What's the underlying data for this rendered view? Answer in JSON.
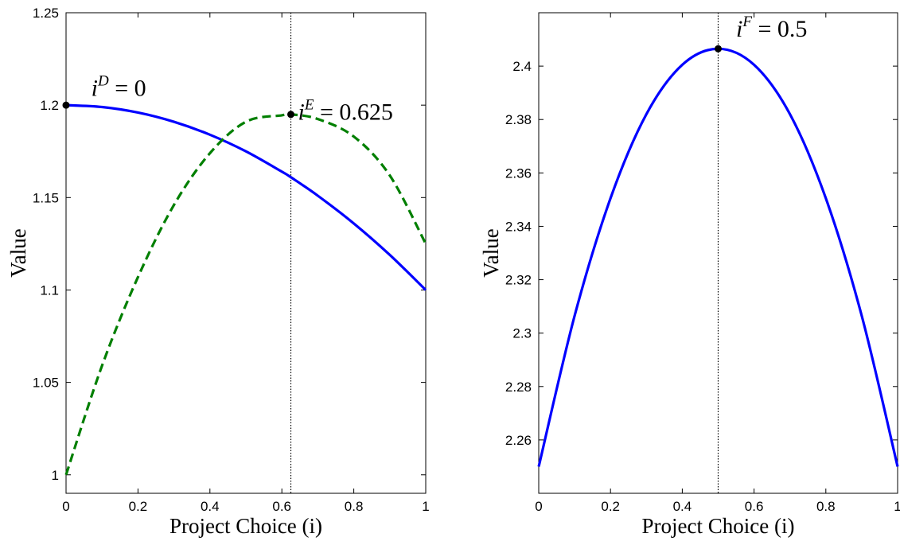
{
  "chart_data": [
    {
      "type": "line",
      "xlabel": "Project Choice (i)",
      "ylabel": "Value",
      "xlim": [
        0,
        1
      ],
      "ylim": [
        0.99,
        1.25
      ],
      "x_ticks": [
        0,
        0.2,
        0.4,
        0.6,
        0.8,
        1
      ],
      "x_tick_labels": [
        "0",
        "0.2",
        "0.4",
        "0.6",
        "0.8",
        "1"
      ],
      "y_ticks": [
        1,
        1.05,
        1.1,
        1.15,
        1.2,
        1.25
      ],
      "y_tick_labels": [
        "1",
        "1.05",
        "1.1",
        "1.15",
        "1.2",
        "1.25"
      ],
      "grid": false,
      "series": [
        {
          "style": "solid",
          "color": "#0000ff",
          "x": [
            0,
            0.1,
            0.2,
            0.3,
            0.4,
            0.5,
            0.6,
            0.625,
            0.7,
            0.8,
            0.9,
            1.0
          ],
          "y": [
            1.2,
            1.199,
            1.196,
            1.191,
            1.184,
            1.175,
            1.164,
            1.161,
            1.151,
            1.136,
            1.119,
            1.1
          ]
        },
        {
          "style": "dashed",
          "color": "#007f00",
          "x": [
            0,
            0.1,
            0.2,
            0.3,
            0.4,
            0.5,
            0.6,
            0.625,
            0.7,
            0.8,
            0.9,
            1.0
          ],
          "y": [
            1.0,
            1.059,
            1.107,
            1.146,
            1.174,
            1.191,
            1.1945,
            1.195,
            1.1925,
            1.183,
            1.162,
            1.125
          ]
        }
      ],
      "vline": {
        "x": 0.625
      },
      "markers": [
        {
          "x": 0,
          "y": 1.2
        },
        {
          "x": 0.625,
          "y": 1.195
        }
      ],
      "annotations": [
        {
          "base": "i",
          "sup": "D",
          "rest": " = 0",
          "x": 0.07,
          "y": 1.205
        },
        {
          "base": "i",
          "sup": "E",
          "rest": " = 0.625",
          "x": 0.645,
          "y": 1.192
        }
      ]
    },
    {
      "type": "line",
      "xlabel": "Project Choice (i)",
      "ylabel": "Value",
      "xlim": [
        0,
        1
      ],
      "ylim": [
        2.24,
        2.42
      ],
      "x_ticks": [
        0,
        0.2,
        0.4,
        0.6,
        0.8,
        1
      ],
      "x_tick_labels": [
        "0",
        "0.2",
        "0.4",
        "0.6",
        "0.8",
        "1"
      ],
      "y_ticks": [
        2.26,
        2.28,
        2.3,
        2.32,
        2.34,
        2.36,
        2.38,
        2.4
      ],
      "y_tick_labels": [
        "2.26",
        "2.28",
        "2.3",
        "2.32",
        "2.34",
        "2.36",
        "2.38",
        "2.4"
      ],
      "grid": false,
      "series": [
        {
          "style": "solid",
          "color": "#0000ff",
          "x": [
            0,
            0.1,
            0.2,
            0.3,
            0.4,
            0.5,
            0.6,
            0.7,
            0.8,
            0.9,
            1.0
          ],
          "y": [
            2.25,
            2.3065,
            2.3505,
            2.382,
            2.4005,
            2.4065,
            2.4005,
            2.382,
            2.3505,
            2.3065,
            2.25
          ]
        }
      ],
      "vline": {
        "x": 0.5
      },
      "markers": [
        {
          "x": 0.5,
          "y": 2.4065
        }
      ],
      "annotations": [
        {
          "base": "i",
          "sup": "F",
          "rest": " = 0.5",
          "x": 0.55,
          "y": 2.411
        }
      ]
    }
  ]
}
